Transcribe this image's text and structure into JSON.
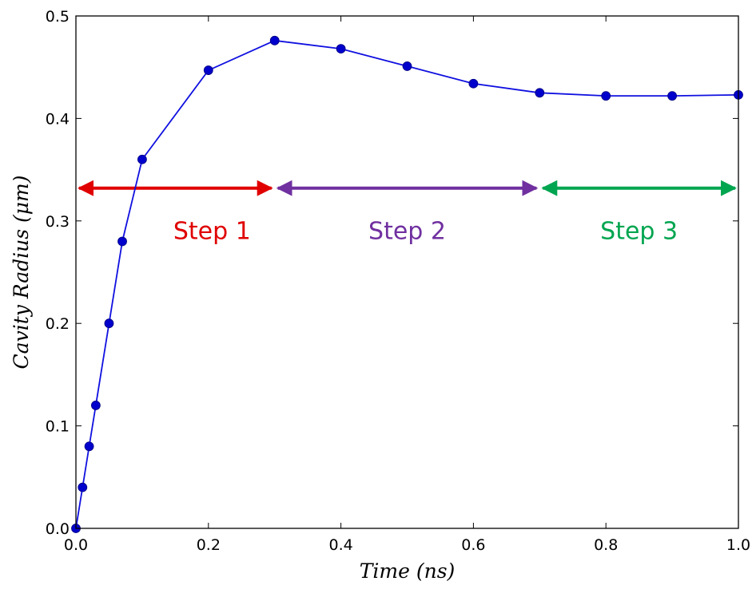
{
  "chart_data": {
    "type": "line",
    "xlabel": "Time (ns)",
    "ylabel": "Cavity Radius (μm)",
    "xlim": [
      0.0,
      1.0
    ],
    "ylim": [
      0.0,
      0.5
    ],
    "x_ticks": [
      "0.0",
      "0.2",
      "0.4",
      "0.6",
      "0.8",
      "1.0"
    ],
    "y_ticks": [
      "0.0",
      "0.1",
      "0.2",
      "0.3",
      "0.4",
      "0.5"
    ],
    "grid": false,
    "series": [
      {
        "color": "#1010e0",
        "x": [
          0.0,
          0.01,
          0.02,
          0.03,
          0.05,
          0.07,
          0.1,
          0.2,
          0.3,
          0.4,
          0.5,
          0.6,
          0.7,
          0.8,
          0.9,
          1.0
        ],
        "y": [
          0.0,
          0.04,
          0.08,
          0.12,
          0.2,
          0.28,
          0.36,
          0.447,
          0.476,
          0.468,
          0.451,
          0.434,
          0.425,
          0.422,
          0.422,
          0.423
        ]
      }
    ],
    "annotations": [
      {
        "label": "Step 1",
        "x_start": 0.0,
        "x_end": 0.3,
        "y": 0.332,
        "color": "#e00000"
      },
      {
        "label": "Step 2",
        "x_start": 0.3,
        "x_end": 0.7,
        "y": 0.332,
        "color": "#7030a0"
      },
      {
        "label": "Step 3",
        "x_start": 0.7,
        "x_end": 1.0,
        "y": 0.332,
        "color": "#00a550"
      }
    ]
  }
}
